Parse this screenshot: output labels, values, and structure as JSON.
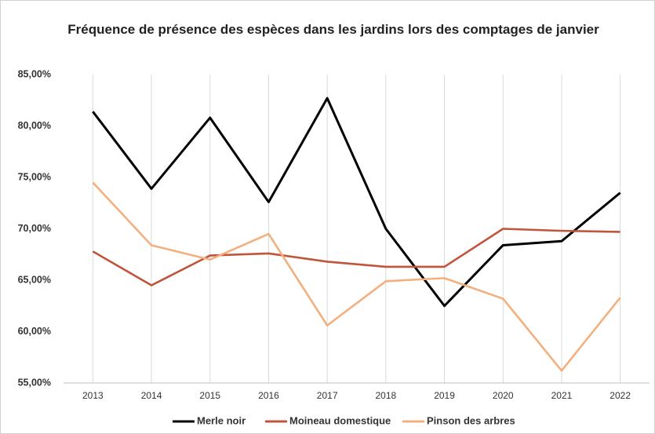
{
  "chart_data": {
    "type": "line",
    "title": "Fréquence de présence des espèces dans les jardins lors des comptages de janvier",
    "categories": [
      "2013",
      "2014",
      "2015",
      "2016",
      "2017",
      "2018",
      "2019",
      "2020",
      "2021",
      "2022"
    ],
    "series": [
      {
        "name": "Merle noir",
        "color": "#000000",
        "values": [
          81.4,
          73.9,
          80.8,
          72.6,
          82.7,
          70.0,
          62.5,
          68.4,
          68.8,
          73.5
        ]
      },
      {
        "name": "Moineau domestique",
        "color": "#c0553c",
        "values": [
          67.8,
          64.5,
          67.4,
          67.6,
          66.8,
          66.3,
          66.3,
          70.0,
          69.8,
          69.7
        ]
      },
      {
        "name": "Pinson des arbres",
        "color": "#f2b07e",
        "values": [
          74.5,
          68.4,
          67.0,
          69.5,
          60.6,
          64.9,
          65.2,
          63.2,
          56.2,
          63.3
        ]
      }
    ],
    "ylim": [
      55,
      85
    ],
    "yticks": [
      {
        "value": 55,
        "label": "55,00%"
      },
      {
        "value": 60,
        "label": "60,00%"
      },
      {
        "value": 65,
        "label": "65,00%"
      },
      {
        "value": 70,
        "label": "70,00%"
      },
      {
        "value": 75,
        "label": "75,00%"
      },
      {
        "value": 80,
        "label": "80,00%"
      },
      {
        "value": 85,
        "label": "85,00%"
      }
    ],
    "grid": "x",
    "legend": "bottom"
  }
}
